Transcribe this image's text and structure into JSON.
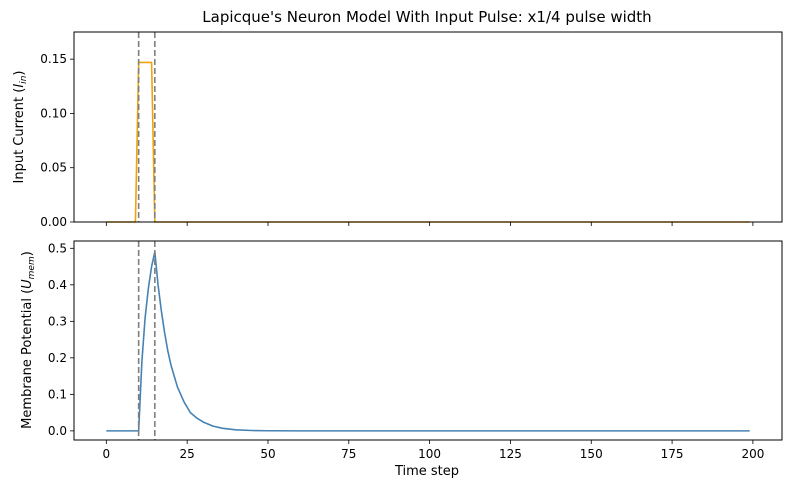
{
  "title": "Lapicque's Neuron Model With Input Pulse: x1/4 pulse width",
  "xlabel": "Time step",
  "top_ylabel": {
    "main": "Input Current (",
    "italic": "I",
    "sub": "in",
    "close": ")"
  },
  "bottom_ylabel": {
    "main": "Membrane Potential (",
    "italic": "U",
    "sub": "mem",
    "close": ")"
  },
  "chart_data": [
    {
      "type": "line",
      "panel": "top",
      "ylabel": "Input Current (I_in)",
      "xlim": [
        -10,
        209
      ],
      "ylim": [
        0,
        0.175
      ],
      "xticks": [
        0,
        25,
        50,
        75,
        100,
        125,
        150,
        175,
        200
      ],
      "xtick_labels_visible": false,
      "yticks": [
        0.0,
        0.05,
        0.1,
        0.15
      ],
      "ytick_labels": [
        "0.00",
        "0.05",
        "0.10",
        "0.15"
      ],
      "series": [
        {
          "color": "#f0a30a",
          "x": [
            0,
            9,
            10,
            14,
            15,
            199
          ],
          "y": [
            0,
            0,
            0.147,
            0.147,
            0,
            0
          ]
        }
      ],
      "vlines": [
        10,
        15
      ],
      "vline_color": "#7f7f7f",
      "grid": false
    },
    {
      "type": "line",
      "panel": "bottom",
      "ylabel": "Membrane Potential (U_mem)",
      "xlabel": "Time step",
      "xlim": [
        -10,
        209
      ],
      "ylim": [
        -0.025,
        0.52
      ],
      "xticks": [
        0,
        25,
        50,
        75,
        100,
        125,
        150,
        175,
        200
      ],
      "xtick_labels": [
        "0",
        "25",
        "50",
        "75",
        "100",
        "125",
        "150",
        "175",
        "200"
      ],
      "yticks": [
        0.0,
        0.1,
        0.2,
        0.3,
        0.4,
        0.5
      ],
      "ytick_labels": [
        "0.0",
        "0.1",
        "0.2",
        "0.3",
        "0.4",
        "0.5"
      ],
      "series": [
        {
          "color": "#4682b4",
          "x": [
            0,
            10,
            11,
            12,
            13,
            14,
            15,
            16,
            17,
            18,
            19,
            20,
            22,
            24,
            26,
            28,
            30,
            33,
            36,
            40,
            45,
            50,
            60,
            80,
            199
          ],
          "y": [
            0,
            0,
            0.19,
            0.31,
            0.39,
            0.45,
            0.49,
            0.4,
            0.33,
            0.27,
            0.22,
            0.18,
            0.12,
            0.08,
            0.05,
            0.035,
            0.024,
            0.013,
            0.007,
            0.003,
            0.001,
            0.0003,
            0,
            0,
            0
          ]
        }
      ],
      "vlines": [
        10,
        15
      ],
      "vline_color": "#7f7f7f",
      "grid": false
    }
  ]
}
